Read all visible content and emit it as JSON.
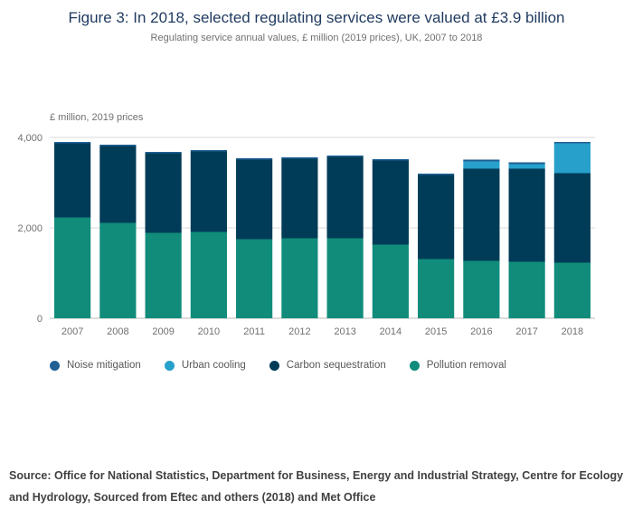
{
  "figure": {
    "title": "Figure 3: In 2018, selected regulating services were valued at £3.9 billion",
    "subtitle": "Regulating service annual values, £ million (2019 prices), UK, 2007 to 2018",
    "axis_unit_label": "£ million, 2019 prices",
    "source": "Source: Office for National Statistics, Department for Business, Energy and Industrial Strategy, Centre for Ecology and Hydrology, Sourced from Eftec and others (2018) and Met Office"
  },
  "colors": {
    "title_navy": "#1f3a5f",
    "axis_text": "#707070",
    "gridline": "#d9d9d9",
    "baseline": "#b8b8b8",
    "legend_text": "#595959",
    "source_text": "#414042"
  },
  "chart_data": {
    "type": "bar",
    "stacked": true,
    "title": "Figure 3: In 2018, selected regulating services were valued at £3.9 billion",
    "subtitle": "Regulating service annual values, £ million (2019 prices), UK, 2007 to 2018",
    "categories": [
      "2007",
      "2008",
      "2009",
      "2010",
      "2011",
      "2012",
      "2013",
      "2014",
      "2015",
      "2016",
      "2017",
      "2018"
    ],
    "series": [
      {
        "name": "Noise mitigation",
        "color": "#206095",
        "values": [
          30,
          30,
          30,
          30,
          30,
          30,
          30,
          30,
          30,
          40,
          40,
          30
        ]
      },
      {
        "name": "Urban cooling",
        "color": "#27A0CC",
        "values": [
          0,
          0,
          0,
          0,
          0,
          0,
          0,
          0,
          0,
          160,
          100,
          660
        ]
      },
      {
        "name": "Carbon sequestration",
        "color": "#003C57",
        "values": [
          1640,
          1700,
          1760,
          1780,
          1760,
          1760,
          1800,
          1860,
          1860,
          2040,
          2060,
          1980
        ]
      },
      {
        "name": "Pollution removal",
        "color": "#118C7B",
        "values": [
          2230,
          2110,
          1890,
          1910,
          1750,
          1770,
          1770,
          1630,
          1310,
          1270,
          1250,
          1230
        ]
      }
    ],
    "stack_order_note": "series listed top-of-stack first; rendered bottom-up in reverse order",
    "xlabel": "",
    "ylabel": "£ million, 2019 prices",
    "ylim": [
      0,
      4000
    ],
    "yticks": [
      0,
      2000,
      4000
    ],
    "ytick_labels": [
      "0",
      "2,000",
      "4,000"
    ],
    "grid": true,
    "legend_position": "bottom"
  }
}
